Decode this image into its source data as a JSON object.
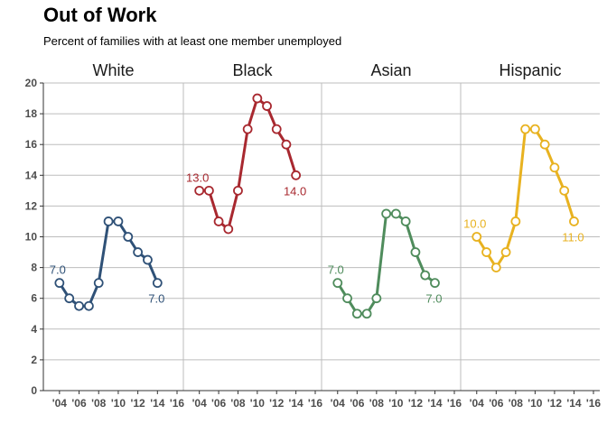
{
  "chart_data": {
    "type": "line",
    "title": "Out of Work",
    "subtitle": "Percent of families with at least one member unemployed",
    "xlabel": "",
    "ylabel": "",
    "ylim": [
      0,
      20
    ],
    "xlim": [
      2003,
      2016
    ],
    "yticks": [
      "0",
      "2",
      "4",
      "6",
      "8",
      "10",
      "12",
      "14",
      "16",
      "18",
      "20"
    ],
    "xticks": [
      {
        "value": 2004,
        "label": "'04"
      },
      {
        "value": 2006,
        "label": "'06"
      },
      {
        "value": 2008,
        "label": "'08"
      },
      {
        "value": 2010,
        "label": "'10"
      },
      {
        "value": 2012,
        "label": "'12"
      },
      {
        "value": 2014,
        "label": "'14"
      },
      {
        "value": 2016,
        "label": "'16"
      }
    ],
    "grid": true,
    "x": [
      2004,
      2005,
      2006,
      2007,
      2008,
      2009,
      2010,
      2011,
      2012,
      2013,
      2014
    ],
    "facets": [
      {
        "name": "White",
        "color": "#2f5177",
        "values": [
          7.0,
          6.0,
          5.5,
          5.5,
          7.0,
          11.0,
          11.0,
          10.0,
          9.0,
          8.5,
          7.0
        ],
        "first_label": "7.0",
        "last_label": "7.0"
      },
      {
        "name": "Black",
        "color": "#a8282f",
        "values": [
          13.0,
          13.0,
          11.0,
          10.5,
          13.0,
          17.0,
          19.0,
          18.5,
          17.0,
          16.0,
          14.0
        ],
        "first_label": "13.0",
        "last_label": "14.0"
      },
      {
        "name": "Asian",
        "color": "#4f8c5c",
        "values": [
          7.0,
          6.0,
          5.0,
          5.0,
          6.0,
          11.5,
          11.5,
          11.0,
          9.0,
          7.5,
          7.0
        ],
        "first_label": "7.0",
        "last_label": "7.0"
      },
      {
        "name": "Hispanic",
        "color": "#e8b220",
        "values": [
          10.0,
          9.0,
          8.0,
          9.0,
          11.0,
          17.0,
          17.0,
          16.0,
          14.5,
          13.0,
          11.0
        ],
        "first_label": "10.0",
        "last_label": "11.0"
      }
    ]
  }
}
